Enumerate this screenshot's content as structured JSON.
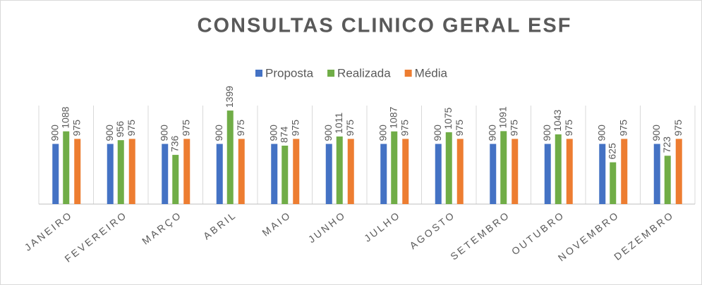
{
  "chart_data": {
    "type": "bar",
    "title": "CONSULTAS CLINICO GERAL ESF",
    "categories": [
      "JANEIRO",
      "FEVEREIRO",
      "MARÇO",
      "ABRIL",
      "MAIO",
      "JUNHO",
      "JULHO",
      "AGOSTO",
      "SETEMBRO",
      "OUTUBRO",
      "NOVEMBRO",
      "DEZEMBRO"
    ],
    "series": [
      {
        "name": "Proposta",
        "color": "#4472c4",
        "values": [
          900,
          900,
          900,
          900,
          900,
          900,
          900,
          900,
          900,
          900,
          900,
          900
        ]
      },
      {
        "name": "Realizada",
        "color": "#70ad47",
        "values": [
          1088,
          956,
          736,
          1399,
          874,
          1011,
          1087,
          1075,
          1091,
          1043,
          625,
          723
        ]
      },
      {
        "name": "Média",
        "color": "#ed7d31",
        "values": [
          975,
          975,
          975,
          975,
          975,
          975,
          975,
          975,
          975,
          975,
          975,
          975
        ]
      }
    ],
    "legend": "top",
    "data_labels": true
  }
}
